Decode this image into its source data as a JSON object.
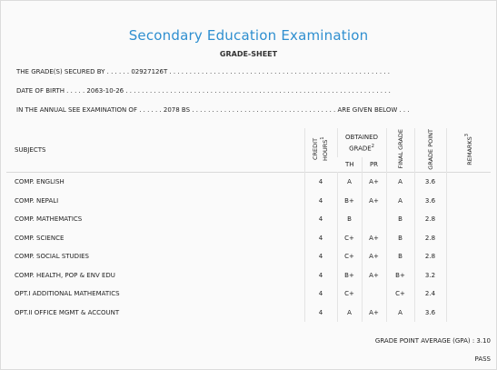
{
  "header": {
    "title": "Secondary Education Examination",
    "subtitle": "GRADE-SHEET"
  },
  "info": {
    "grade_line": "THE GRADE(S) SECURED BY . . . . . . 02927126T . . . . . . . . . . . . . . . . . . . . . . . . . . . . . . . . . . . . . . . . . . . . . . . . . . . . . . .",
    "dob_line": "DATE OF BIRTH . . . . . 2063-10-26 . . . . . . . . . . . . . . . . . . . . . . . . . . . . . . . . . . . . . . . . . . . . . . . . . . . . . . . . . . . . . . . . . .",
    "exam_line": "IN THE ANNUAL SEE EXAMINATION OF . . . . . . 2078 BS . . . . . . . . . . . . . . . . . . . . . . . . . . . . . . . . . . . . ARE GIVEN BELOW . . ."
  },
  "table": {
    "headers": {
      "subjects": "SUBJECTS",
      "credit": "CREDIT HOURS",
      "credit_sup": "1",
      "obtained": "OBTAINED GRADE",
      "obtained_sup": "2",
      "th": "TH",
      "pr": "PR",
      "final": "FINAL GRADE",
      "point": "GRADE POINT",
      "remarks": "REMARKS",
      "remarks_sup": "3"
    },
    "rows": [
      {
        "subject": "COMP. ENGLISH",
        "credit": "4",
        "th": "A",
        "pr": "A+",
        "final": "A",
        "point": "3.6"
      },
      {
        "subject": "COMP. NEPALI",
        "credit": "4",
        "th": "B+",
        "pr": "A+",
        "final": "A",
        "point": "3.6"
      },
      {
        "subject": "COMP. MATHEMATICS",
        "credit": "4",
        "th": "B",
        "pr": "",
        "final": "B",
        "point": "2.8"
      },
      {
        "subject": "COMP. SCIENCE",
        "credit": "4",
        "th": "C+",
        "pr": "A+",
        "final": "B",
        "point": "2.8"
      },
      {
        "subject": "COMP. SOCIAL STUDIES",
        "credit": "4",
        "th": "C+",
        "pr": "A+",
        "final": "B",
        "point": "2.8"
      },
      {
        "subject": "COMP. HEALTH, POP & ENV EDU",
        "credit": "4",
        "th": "B+",
        "pr": "A+",
        "final": "B+",
        "point": "3.2"
      },
      {
        "subject": "OPT.I ADDITIONAL MATHEMATICS",
        "credit": "4",
        "th": "C+",
        "pr": "",
        "final": "C+",
        "point": "2.4"
      },
      {
        "subject": "OPT.II OFFICE MGMT & ACCOUNT",
        "credit": "4",
        "th": "A",
        "pr": "A+",
        "final": "A",
        "point": "3.6"
      }
    ]
  },
  "summary": {
    "gpa_label": "GRADE POINT AVERAGE (GPA) : 3.10",
    "result": "PASS"
  }
}
